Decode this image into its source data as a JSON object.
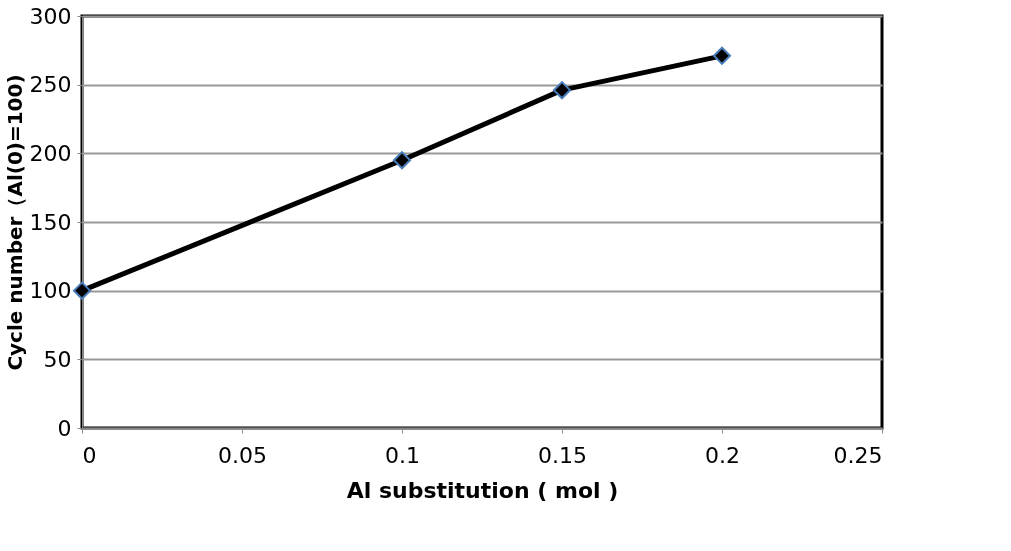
{
  "chart_data": {
    "type": "line",
    "xlabel": "Al substitution ( mol )",
    "ylabel": "Cycle number（Al(0)=100)",
    "x": [
      0,
      0.1,
      0.15,
      0.2
    ],
    "series": [
      {
        "color": "#000000",
        "values": [
          100,
          195,
          246,
          271
        ]
      }
    ],
    "xlim": [
      0,
      0.25
    ],
    "xticks": [
      0,
      0.05,
      0.1,
      0.15,
      0.2,
      0.25
    ],
    "ylim": [
      0,
      300
    ],
    "yticks": [
      0,
      50,
      100,
      150,
      200,
      250,
      300
    ],
    "grid": "y",
    "marker": "diamond",
    "line_style": "solid"
  }
}
